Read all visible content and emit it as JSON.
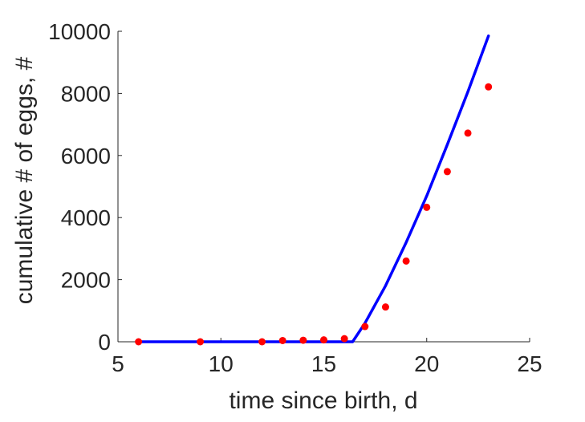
{
  "chart_data": {
    "type": "line",
    "title": "",
    "xlabel": "time since birth, d",
    "ylabel": "cumulative # of eggs, #",
    "xlim": [
      5,
      25
    ],
    "ylim": [
      0,
      10000
    ],
    "xticks": [
      5,
      10,
      15,
      20,
      25
    ],
    "yticks": [
      0,
      2000,
      4000,
      6000,
      8000,
      10000
    ],
    "xtick_labels": [
      "5",
      "10",
      "15",
      "20",
      "25"
    ],
    "ytick_labels": [
      "0",
      "2000",
      "4000",
      "6000",
      "8000",
      "10000"
    ],
    "grid": false,
    "legend": "none",
    "colors": {
      "line": "#0000ff",
      "points": "#ff0000",
      "axis": "#262626"
    },
    "series": [
      {
        "kind": "points",
        "x": [
          6,
          9,
          12,
          13,
          14,
          15,
          16,
          17,
          18,
          19,
          20,
          21,
          22,
          23
        ],
        "y": [
          0,
          0,
          0,
          40,
          50,
          60,
          100,
          490,
          1120,
          2600,
          4330,
          5480,
          6720,
          8210
        ]
      },
      {
        "kind": "line",
        "x": [
          6,
          16.4,
          17,
          18,
          19,
          20,
          21,
          22,
          23
        ],
        "y": [
          0,
          0,
          600,
          1800,
          3200,
          4700,
          6350,
          8050,
          9850
        ]
      }
    ]
  }
}
